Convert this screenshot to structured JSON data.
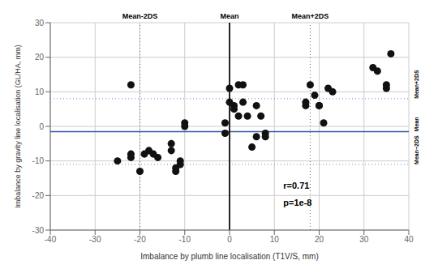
{
  "chart_data": {
    "type": "scatter",
    "xlabel": "Imbalance by plumb line localisation (T1V/S, mm)",
    "ylabel": "Imbalance by gravity line localisation (GL/HA, mm)",
    "xlim": [
      -40,
      40
    ],
    "ylim": [
      -30,
      30
    ],
    "xticks": [
      -40,
      -30,
      -20,
      -10,
      0,
      10,
      20,
      30,
      40
    ],
    "yticks": [
      -30,
      -20,
      -10,
      0,
      10,
      20,
      30
    ],
    "grid": true,
    "color": "#111111",
    "marker": "circle",
    "x": [
      -25,
      -22,
      -22,
      -22,
      -20,
      -19,
      -18,
      -17,
      -16,
      -13,
      -13,
      -12,
      -12,
      -11,
      -11,
      -10,
      -10,
      -1,
      -1,
      0,
      0,
      1,
      1,
      2,
      2,
      3,
      3,
      4,
      5,
      6,
      6,
      7,
      8,
      8,
      17,
      17,
      18,
      19,
      20,
      20,
      21,
      22,
      23,
      32,
      33,
      35,
      35,
      36
    ],
    "values": [
      -10,
      12,
      -8,
      -9,
      -13,
      -8,
      -7,
      -8,
      -9,
      -5,
      -7,
      -12,
      -13,
      -10,
      -11,
      1,
      0,
      1,
      -2,
      11,
      7,
      6,
      5,
      3,
      12,
      12,
      7,
      3,
      -6,
      -3,
      6,
      3,
      -2,
      -3,
      6,
      7,
      12,
      9,
      6,
      6,
      1,
      11,
      10,
      17,
      16,
      11,
      12,
      21
    ],
    "hlines": [
      {
        "value": 8.0,
        "label": "Mean+2DS",
        "color": "#6688cc",
        "line_style": "dotted"
      },
      {
        "value": -1.5,
        "label": "Mean",
        "color": "#3355aa",
        "line_style": "solid"
      },
      {
        "value": -11.0,
        "label": "Mean−2DS",
        "color": "#6688cc",
        "line_style": "dotted"
      }
    ],
    "vlines": [
      {
        "value": -20,
        "label": "Mean-2DS",
        "color": "#666666",
        "line_style": "dotted"
      },
      {
        "value": 0,
        "label": "Mean",
        "color": "#111111",
        "line_style": "solid"
      },
      {
        "value": 18,
        "label": "Mean+2DS",
        "color": "#666666",
        "line_style": "dotted"
      }
    ],
    "annotations": [
      "r=0.71",
      "p=1e-8"
    ]
  }
}
